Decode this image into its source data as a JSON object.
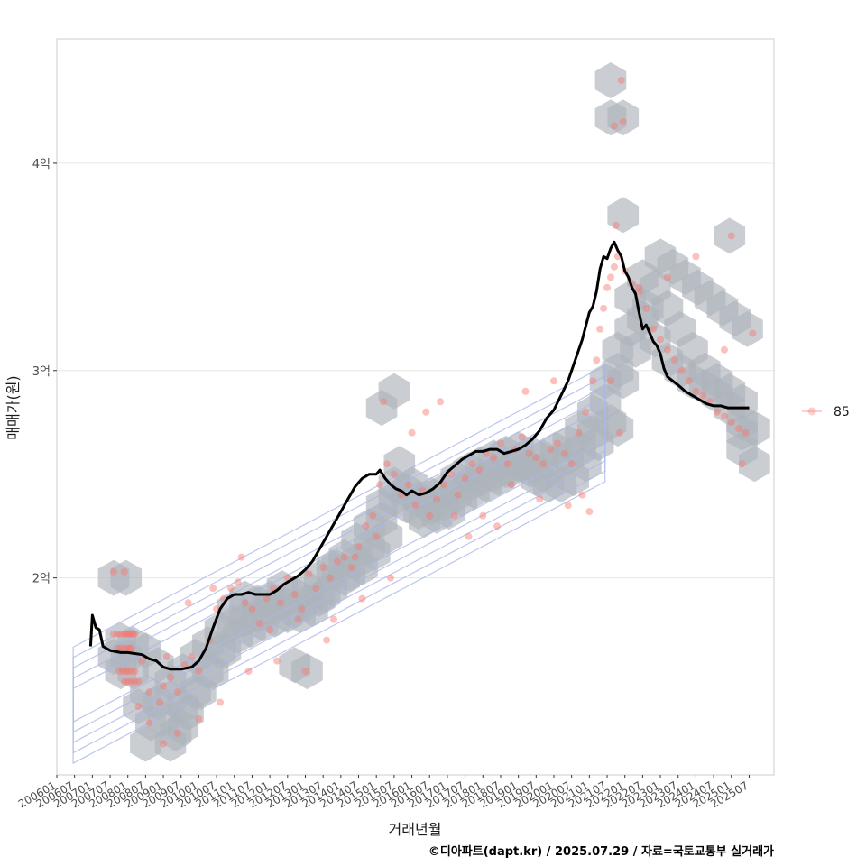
{
  "chart_data": {
    "type": "scatter",
    "xlabel": "거래년월",
    "ylabel": "매매가(원)",
    "caption": "©디아파트(dapt.kr) / 2025.07.29 / 자료=국토교통부 실거래가",
    "y_unit": "억",
    "ylim": [
      1.05,
      4.6
    ],
    "xlim": [
      2006.0,
      2026.2
    ],
    "y_ticks": [
      2,
      3,
      4
    ],
    "y_tick_labels": [
      "2억",
      "3억",
      "4억"
    ],
    "x_tick_values": [
      2006.0,
      2006.5,
      2007.0,
      2007.5,
      2008.0,
      2008.5,
      2009.0,
      2009.5,
      2010.0,
      2010.5,
      2011.0,
      2011.5,
      2012.0,
      2012.5,
      2013.0,
      2013.5,
      2014.0,
      2014.5,
      2015.0,
      2015.5,
      2016.0,
      2016.5,
      2017.0,
      2017.5,
      2018.0,
      2018.5,
      2019.0,
      2019.5,
      2020.0,
      2020.5,
      2021.0,
      2021.5,
      2022.0,
      2022.5,
      2023.0,
      2023.5,
      2024.0,
      2024.5,
      2025.0,
      2025.5
    ],
    "x_tick_labels": [
      "200601",
      "200607",
      "200701",
      "200707",
      "200801",
      "200807",
      "200901",
      "200907",
      "201001",
      "201007",
      "201101",
      "201107",
      "201201",
      "201207",
      "201301",
      "201307",
      "201401",
      "201407",
      "201501",
      "201507",
      "201601",
      "201607",
      "201701",
      "201707",
      "201801",
      "201807",
      "201901",
      "201907",
      "202001",
      "202007",
      "202101",
      "202107",
      "202201",
      "202207",
      "202301",
      "202307",
      "202401",
      "202407",
      "202501",
      "202507"
    ],
    "legend": {
      "position": "right",
      "entries": [
        {
          "label": "85",
          "color": "#F8766D"
        }
      ]
    },
    "colors": {
      "points": "#F8766D",
      "hex": "#aeb4bb",
      "trend": "#000000",
      "contour": "#aab8ea",
      "grid": "#e6e6e6",
      "panel_border": "#cccccc"
    },
    "series": [
      {
        "name": "moving average",
        "kind": "line",
        "x": [
          2006.95,
          2007.0,
          2007.1,
          2007.2,
          2007.3,
          2007.5,
          2007.8,
          2008.0,
          2008.4,
          2008.6,
          2008.8,
          2009.0,
          2009.2,
          2009.5,
          2009.8,
          2010.0,
          2010.2,
          2010.4,
          2010.6,
          2010.8,
          2011.0,
          2011.2,
          2011.4,
          2011.6,
          2011.8,
          2012.0,
          2012.2,
          2012.4,
          2012.6,
          2012.8,
          2013.0,
          2013.2,
          2013.4,
          2013.6,
          2013.8,
          2014.0,
          2014.2,
          2014.4,
          2014.6,
          2014.8,
          2015.0,
          2015.1,
          2015.25,
          2015.4,
          2015.55,
          2015.7,
          2015.85,
          2016.0,
          2016.2,
          2016.4,
          2016.6,
          2016.8,
          2017.0,
          2017.2,
          2017.4,
          2017.6,
          2017.8,
          2018.0,
          2018.2,
          2018.4,
          2018.6,
          2018.8,
          2019.0,
          2019.2,
          2019.4,
          2019.6,
          2019.8,
          2020.0,
          2020.2,
          2020.4,
          2020.6,
          2020.8,
          2021.0,
          2021.1,
          2021.2,
          2021.3,
          2021.4,
          2021.5,
          2021.6,
          2021.7,
          2021.8,
          2021.9,
          2022.0,
          2022.1,
          2022.2,
          2022.3,
          2022.4,
          2022.5,
          2022.6,
          2022.7,
          2022.8,
          2022.9,
          2023.0,
          2023.1,
          2023.2,
          2023.35,
          2023.5,
          2023.7,
          2023.9,
          2024.1,
          2024.3,
          2024.5,
          2024.7,
          2024.9,
          2025.1,
          2025.3,
          2025.5
        ],
        "y": [
          1.67,
          1.82,
          1.76,
          1.75,
          1.67,
          1.65,
          1.64,
          1.64,
          1.63,
          1.61,
          1.6,
          1.57,
          1.56,
          1.56,
          1.57,
          1.6,
          1.66,
          1.76,
          1.85,
          1.9,
          1.92,
          1.92,
          1.93,
          1.92,
          1.92,
          1.92,
          1.94,
          1.97,
          1.99,
          2.01,
          2.04,
          2.08,
          2.14,
          2.2,
          2.26,
          2.32,
          2.38,
          2.44,
          2.48,
          2.5,
          2.5,
          2.52,
          2.48,
          2.45,
          2.43,
          2.42,
          2.4,
          2.42,
          2.4,
          2.41,
          2.43,
          2.46,
          2.51,
          2.54,
          2.57,
          2.59,
          2.61,
          2.61,
          2.62,
          2.62,
          2.6,
          2.61,
          2.62,
          2.64,
          2.67,
          2.71,
          2.77,
          2.81,
          2.88,
          2.95,
          3.05,
          3.15,
          3.28,
          3.31,
          3.38,
          3.49,
          3.55,
          3.54,
          3.59,
          3.62,
          3.58,
          3.55,
          3.48,
          3.45,
          3.4,
          3.37,
          3.28,
          3.2,
          3.22,
          3.18,
          3.14,
          3.12,
          3.08,
          3.01,
          2.97,
          2.95,
          2.93,
          2.9,
          2.88,
          2.86,
          2.84,
          2.83,
          2.83,
          2.82,
          2.82,
          2.82,
          2.82
        ]
      },
      {
        "name": "85",
        "kind": "points",
        "x": [
          2007.6,
          2007.7,
          2007.8,
          2007.9,
          2007.95,
          2008.0,
          2008.05,
          2008.1,
          2008.15,
          2008.2,
          2007.7,
          2007.8,
          2007.9,
          2008.0,
          2008.05,
          2008.1,
          2007.75,
          2007.85,
          2007.95,
          2008.0,
          2008.1,
          2008.2,
          2007.9,
          2008.0,
          2008.1,
          2008.2,
          2008.3,
          2007.6,
          2007.9,
          2008.4,
          2008.6,
          2008.9,
          2009.0,
          2009.2,
          2009.4,
          2009.6,
          2009.8,
          2010.0,
          2010.3,
          2010.5,
          2010.7,
          2010.9,
          2011.1,
          2011.3,
          2011.5,
          2011.7,
          2011.9,
          2012.1,
          2012.3,
          2012.5,
          2012.7,
          2012.9,
          2013.1,
          2013.3,
          2013.5,
          2013.7,
          2013.9,
          2014.1,
          2014.3,
          2014.5,
          2014.7,
          2014.9,
          2015.1,
          2015.3,
          2015.5,
          2015.7,
          2015.9,
          2016.1,
          2016.3,
          2016.5,
          2016.7,
          2016.9,
          2017.1,
          2017.3,
          2017.5,
          2017.7,
          2017.9,
          2018.1,
          2018.3,
          2018.5,
          2018.7,
          2018.9,
          2019.1,
          2019.3,
          2019.5,
          2019.7,
          2019.9,
          2020.1,
          2020.3,
          2020.5,
          2020.7,
          2020.9,
          2021.1,
          2021.2,
          2021.3,
          2021.4,
          2021.5,
          2021.6,
          2021.7,
          2021.8,
          2022.0,
          2022.2,
          2022.4,
          2022.6,
          2022.8,
          2023.0,
          2023.2,
          2023.4,
          2023.6,
          2023.8,
          2024.0,
          2024.2,
          2024.4,
          2024.6,
          2024.8,
          2025.0,
          2025.2,
          2025.4,
          2021.9,
          2021.95,
          2021.7,
          2021.75,
          2021.85,
          2008.6,
          2009.0,
          2009.4,
          2010.0,
          2010.6,
          2011.4,
          2012.2,
          2013.0,
          2013.8,
          2014.6,
          2015.4,
          2015.2,
          2016.0,
          2016.8,
          2017.6,
          2018.4,
          2019.2,
          2020.0,
          2020.8,
          2021.6,
          2022.4,
          2023.2,
          2024.0,
          2024.8,
          2025.0,
          2025.3,
          2025.6,
          2008.3,
          2009.1,
          2009.7,
          2010.4,
          2011.2,
          2012.0,
          2012.8,
          2013.6,
          2014.4,
          2015.0,
          2016.4,
          2017.2,
          2018.0,
          2018.8,
          2019.6,
          2020.4,
          2021.0
        ],
        "y": [
          1.73,
          1.73,
          1.73,
          1.73,
          1.73,
          1.73,
          1.73,
          1.73,
          1.73,
          1.73,
          1.66,
          1.66,
          1.66,
          1.66,
          1.66,
          1.66,
          1.55,
          1.55,
          1.55,
          1.55,
          1.55,
          1.55,
          1.5,
          1.5,
          1.5,
          1.5,
          1.5,
          2.03,
          2.03,
          1.6,
          1.45,
          1.4,
          1.48,
          1.52,
          1.45,
          1.58,
          1.62,
          1.55,
          1.7,
          1.85,
          1.9,
          1.95,
          1.98,
          1.88,
          1.85,
          1.78,
          1.9,
          1.95,
          1.88,
          2.0,
          1.92,
          1.85,
          2.02,
          1.95,
          2.05,
          2.0,
          2.08,
          2.1,
          2.05,
          2.15,
          2.25,
          2.3,
          2.45,
          2.55,
          2.5,
          2.4,
          2.45,
          2.35,
          2.42,
          2.3,
          2.38,
          2.45,
          2.5,
          2.4,
          2.48,
          2.55,
          2.52,
          2.6,
          2.58,
          2.65,
          2.55,
          2.62,
          2.68,
          2.6,
          2.58,
          2.55,
          2.62,
          2.65,
          2.6,
          2.55,
          2.7,
          2.8,
          2.95,
          3.05,
          3.2,
          3.3,
          3.4,
          3.45,
          3.5,
          3.55,
          3.48,
          3.42,
          3.38,
          3.3,
          3.2,
          3.15,
          3.1,
          3.05,
          3.0,
          2.95,
          2.9,
          2.88,
          2.85,
          2.8,
          2.78,
          2.75,
          2.72,
          2.7,
          4.4,
          4.2,
          4.18,
          3.7,
          2.7,
          1.3,
          1.2,
          1.25,
          1.32,
          1.4,
          1.55,
          1.6,
          1.55,
          1.8,
          1.9,
          2.0,
          2.85,
          2.7,
          2.85,
          2.2,
          2.25,
          2.9,
          2.95,
          2.4,
          2.95,
          3.4,
          3.45,
          3.55,
          3.1,
          3.65,
          2.55,
          3.18,
          1.38,
          1.62,
          1.88,
          1.95,
          2.1,
          1.75,
          1.8,
          1.7,
          2.1,
          2.2,
          2.8,
          2.3,
          2.3,
          2.45,
          2.38,
          2.35,
          2.32
        ]
      }
    ],
    "hexbins": {
      "x": [
        2007.8,
        2008.15,
        2008.5,
        2008.85,
        2009.2,
        2009.55,
        2009.9,
        2010.25,
        2010.6,
        2010.95,
        2011.3,
        2011.65,
        2012.0,
        2012.35,
        2012.7,
        2013.05,
        2013.4,
        2013.75,
        2014.1,
        2014.45,
        2014.8,
        2015.15,
        2015.5,
        2015.85,
        2016.2,
        2016.55,
        2016.9,
        2017.25,
        2017.6,
        2017.95,
        2018.3,
        2018.65,
        2019.0,
        2019.35,
        2019.7,
        2020.05,
        2020.4,
        2020.75,
        2021.1,
        2021.45,
        2021.8,
        2022.15,
        2022.5,
        2022.85,
        2023.2,
        2023.55,
        2023.9,
        2024.25,
        2024.6,
        2024.95,
        2025.3,
        2025.65,
        2007.8,
        2008.15,
        2008.5,
        2008.85,
        2009.2,
        2009.55,
        2009.9,
        2010.25,
        2010.6,
        2010.95,
        2011.3,
        2011.65,
        2012.0,
        2012.35,
        2012.7,
        2013.05,
        2013.4,
        2013.75,
        2014.1,
        2014.45,
        2014.8,
        2015.15,
        2015.5,
        2015.85,
        2016.2,
        2016.55,
        2016.9,
        2017.25,
        2017.6,
        2017.95,
        2018.3,
        2018.65,
        2019.0,
        2019.35,
        2019.7,
        2020.05,
        2020.4,
        2020.75,
        2021.1,
        2021.45,
        2021.8,
        2022.15,
        2022.5,
        2022.85,
        2023.2,
        2023.55,
        2023.9,
        2024.25,
        2024.6,
        2024.95,
        2025.3,
        2007.6,
        2007.95,
        2008.3,
        2008.65,
        2009.0,
        2009.35,
        2009.7,
        2010.05,
        2010.4,
        2010.75,
        2011.1,
        2011.45,
        2011.8,
        2012.15,
        2012.5,
        2012.85,
        2013.2,
        2013.55,
        2013.9,
        2014.25,
        2014.6,
        2014.95,
        2015.3,
        2015.65,
        2016.0,
        2016.35,
        2016.7,
        2017.05,
        2017.4,
        2017.75,
        2018.1,
        2018.45,
        2018.8,
        2019.15,
        2019.5,
        2019.85,
        2020.2,
        2020.55,
        2020.9,
        2021.25,
        2021.6,
        2021.95,
        2022.3,
        2022.65,
        2023.0,
        2023.35,
        2023.7,
        2024.05,
        2024.4,
        2024.75,
        2025.1,
        2025.45,
        2021.6,
        2021.95,
        2021.6,
        2021.95,
        2021.8,
        2008.5,
        2009.2,
        2009.55,
        2007.6,
        2007.95,
        2013.05,
        2012.7,
        2015.5,
        2015.15,
        2024.95,
        2025.3,
        2025.65,
        2025.3
      ],
      "y": [
        1.55,
        1.55,
        1.45,
        1.4,
        1.5,
        1.55,
        1.62,
        1.68,
        1.75,
        1.85,
        1.9,
        1.88,
        1.9,
        1.95,
        1.92,
        1.95,
        2.0,
        2.05,
        2.1,
        2.18,
        2.25,
        2.35,
        2.45,
        2.42,
        2.38,
        2.4,
        2.42,
        2.48,
        2.52,
        2.55,
        2.58,
        2.6,
        2.62,
        2.6,
        2.58,
        2.62,
        2.65,
        2.72,
        2.8,
        2.95,
        3.1,
        3.2,
        3.25,
        3.15,
        3.05,
        3.0,
        2.95,
        2.92,
        2.88,
        2.82,
        2.75,
        2.72,
        1.7,
        1.68,
        1.65,
        1.58,
        1.42,
        1.38,
        1.45,
        1.55,
        1.65,
        1.78,
        1.8,
        1.82,
        1.85,
        1.88,
        1.85,
        1.88,
        1.9,
        1.95,
        2.0,
        2.08,
        2.15,
        2.28,
        2.38,
        2.35,
        2.32,
        2.34,
        2.36,
        2.4,
        2.45,
        2.48,
        2.5,
        2.52,
        2.55,
        2.52,
        2.5,
        2.55,
        2.58,
        2.62,
        2.7,
        2.85,
        3.0,
        3.35,
        3.45,
        3.4,
        3.3,
        3.2,
        3.1,
        3.0,
        2.95,
        2.9,
        2.85,
        1.62,
        1.62,
        1.38,
        1.3,
        1.32,
        1.25,
        1.35,
        1.45,
        1.55,
        1.65,
        1.72,
        1.75,
        1.78,
        1.8,
        1.82,
        1.82,
        1.85,
        1.92,
        2.05,
        2.02,
        2.05,
        2.12,
        2.2,
        2.55,
        2.45,
        2.28,
        2.3,
        2.32,
        2.38,
        2.42,
        2.45,
        2.48,
        2.52,
        2.55,
        2.48,
        2.45,
        2.45,
        2.48,
        2.55,
        2.65,
        2.75,
        2.95,
        3.1,
        3.3,
        3.55,
        3.5,
        3.45,
        3.4,
        3.35,
        3.3,
        3.25,
        3.2,
        4.4,
        4.22,
        4.22,
        3.75,
        2.72,
        1.2,
        1.2,
        1.28,
        2.0,
        2.0,
        1.55,
        1.58,
        2.9,
        2.82,
        3.65,
        2.62,
        2.55,
        2.7
      ]
    },
    "contours": [
      {
        "rx": 0.6,
        "ry": 0.08
      },
      {
        "rx": 0.9,
        "ry": 0.13
      },
      {
        "rx": 1.25,
        "ry": 0.18
      },
      {
        "rx": 1.6,
        "ry": 0.23
      },
      {
        "rx": 2.0,
        "ry": 0.28
      }
    ],
    "contour_centers": {
      "x": [
        2008.6,
        2019.3
      ],
      "y": [
        1.58,
        2.55
      ]
    }
  }
}
